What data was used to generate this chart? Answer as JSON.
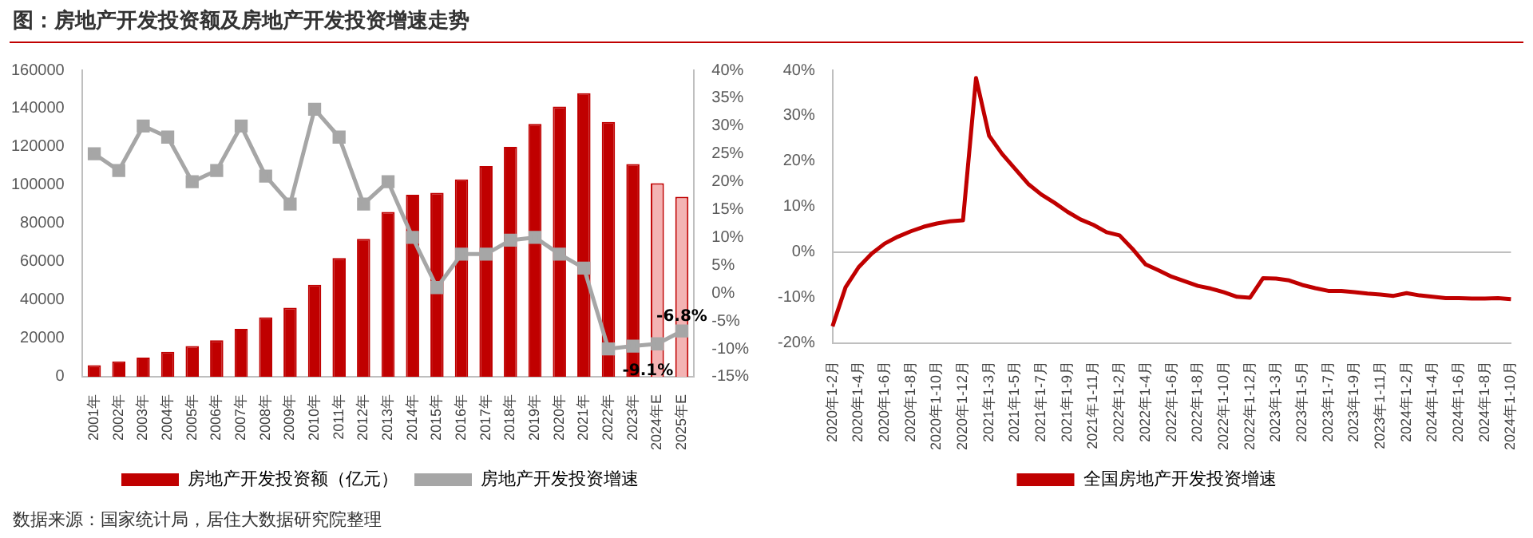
{
  "chart_data": [
    {
      "type": "bar",
      "title": "图：房地产开发投资额及房地产开发投资增速走势",
      "annotations": [
        "数据来源：国家统计局，居住大数据研究院整理"
      ],
      "categories": [
        "2001年",
        "2002年",
        "2003年",
        "2004年",
        "2005年",
        "2006年",
        "2007年",
        "2008年",
        "2009年",
        "2010年",
        "2011年",
        "2012年",
        "2013年",
        "2014年",
        "2015年",
        "2016年",
        "2017年",
        "2018年",
        "2019年",
        "2020年",
        "2021年",
        "2022年",
        "2023年",
        "2024年E",
        "2025年E"
      ],
      "series": [
        {
          "type": "bar",
          "name": "房地产开发投资额（亿元）",
          "color": "#c00000",
          "colors": [
            "#c00000",
            "#c00000",
            "#c00000",
            "#c00000",
            "#c00000",
            "#c00000",
            "#c00000",
            "#c00000",
            "#c00000",
            "#c00000",
            "#c00000",
            "#c00000",
            "#c00000",
            "#c00000",
            "#c00000",
            "#c00000",
            "#c00000",
            "#c00000",
            "#c00000",
            "#c00000",
            "#c00000",
            "#c00000",
            "#c00000",
            "#f3b3b3",
            "#f3b3b3"
          ],
          "values": [
            6000,
            8000,
            10000,
            13000,
            16000,
            19000,
            25000,
            31000,
            36000,
            48000,
            62000,
            72000,
            86000,
            95000,
            96000,
            103000,
            110000,
            120000,
            132000,
            141000,
            148000,
            133000,
            111000,
            101000,
            94000
          ]
        },
        {
          "type": "line",
          "axis": "y2",
          "name": "房地产开发投资增速",
          "color": "#a6a6a6",
          "marker": "square",
          "values": [
            25,
            22,
            30,
            28,
            20,
            22,
            30,
            21,
            16,
            33,
            28,
            16,
            20,
            10,
            1,
            7,
            7,
            9.5,
            10,
            7,
            4.5,
            -10,
            -9.5,
            -9.1,
            -6.8
          ],
          "value_labels": [
            null,
            null,
            null,
            null,
            null,
            null,
            null,
            null,
            null,
            null,
            null,
            null,
            null,
            null,
            null,
            null,
            null,
            null,
            null,
            null,
            null,
            null,
            null,
            "-9.1%",
            "-6.8%"
          ]
        }
      ],
      "ylim": [
        0,
        160000
      ],
      "yticks": [
        0,
        20000,
        40000,
        60000,
        80000,
        100000,
        120000,
        140000,
        160000
      ],
      "y2lim": [
        -15,
        40
      ],
      "y2ticks": [
        {
          "value": -15,
          "label": "-15%"
        },
        {
          "value": -10,
          "label": "-10%"
        },
        {
          "value": -5,
          "label": "-5%"
        },
        {
          "value": 0,
          "label": "0%"
        },
        {
          "value": 5,
          "label": "5%"
        },
        {
          "value": 10,
          "label": "10%"
        },
        {
          "value": 15,
          "label": "15%"
        },
        {
          "value": 20,
          "label": "20%"
        },
        {
          "value": 25,
          "label": "25%"
        },
        {
          "value": 30,
          "label": "30%"
        },
        {
          "value": 35,
          "label": "35%"
        },
        {
          "value": 40,
          "label": "40%"
        }
      ],
      "grid": false,
      "legend": "bottom"
    },
    {
      "type": "line",
      "categories": [
        "2020年1-2月",
        null,
        "2020年1-4月",
        null,
        "2020年1-6月",
        null,
        "2020年1-8月",
        null,
        "2020年1-10月",
        null,
        "2020年1-12月",
        null,
        "2021年1-3月",
        null,
        "2021年1-5月",
        null,
        "2021年1-7月",
        null,
        "2021年1-9月",
        null,
        "2021年1-11月",
        null,
        "2022年1-2月",
        null,
        "2022年1-4月",
        null,
        "2022年1-6月",
        null,
        "2022年1-8月",
        null,
        "2022年1-10月",
        null,
        "2022年1-12月",
        null,
        "2023年1-3月",
        null,
        "2023年1-5月",
        null,
        "2023年1-7月",
        null,
        "2023年1-9月",
        null,
        "2023年1-11月",
        null,
        "2024年1-2月",
        null,
        "2024年1-4月",
        null,
        "2024年1-6月",
        null,
        "2024年1-8月",
        null,
        "2024年1-10月"
      ],
      "series": [
        {
          "name": "全国房地产开发投资增速",
          "color": "#c00000",
          "values": [
            -16.3,
            -7.7,
            -3.3,
            -0.3,
            1.9,
            3.4,
            4.6,
            5.6,
            6.3,
            6.8,
            7.0,
            38.3,
            25.6,
            21.6,
            18.3,
            15.0,
            12.7,
            10.9,
            8.9,
            7.2,
            6.0,
            4.4,
            3.7,
            0.7,
            -2.7,
            -4.0,
            -5.4,
            -6.4,
            -7.4,
            -8.0,
            -8.8,
            -9.8,
            -10.0,
            -5.7,
            -5.8,
            -6.2,
            -7.2,
            -7.9,
            -8.5,
            -8.5,
            -8.8,
            -9.1,
            -9.3,
            -9.6,
            -9.0,
            -9.5,
            -9.8,
            -10.1,
            -10.1,
            -10.2,
            -10.2,
            -10.1,
            -10.3
          ]
        }
      ],
      "ylim": [
        -20,
        40
      ],
      "yticks": [
        {
          "value": -20,
          "label": "-20%"
        },
        {
          "value": -10,
          "label": "-10%"
        },
        {
          "value": 0,
          "label": "0%"
        },
        {
          "value": 10,
          "label": "10%"
        },
        {
          "value": 20,
          "label": "20%"
        },
        {
          "value": 30,
          "label": "30%"
        },
        {
          "value": 40,
          "label": "40%"
        }
      ],
      "marker": "none",
      "grid": false,
      "legend": "bottom",
      "ref_lines": [
        {
          "axis": "y",
          "value": 0,
          "color": "#bfbfbf"
        }
      ]
    }
  ]
}
